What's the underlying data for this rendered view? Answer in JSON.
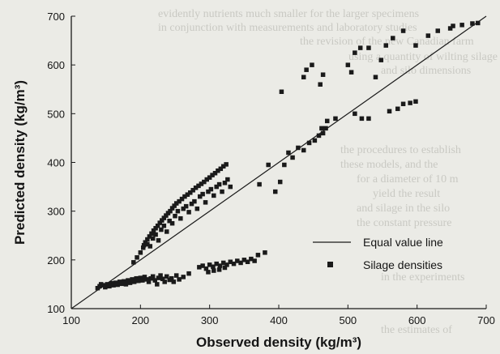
{
  "background_text": [
    "evidently nutrients much smaller for the larger specimens",
    "in conjunction with measurements and laboratory studies",
    "the revision of the new Canadian farm",
    "using a quantity of wilting silage",
    "and silo dimensions",
    "the procedures to establish",
    "these models, and the",
    "for a diameter of 10 m",
    "yield the result",
    "and silage in the silo",
    "the constant pressure",
    "in the experiments",
    "the estimates of"
  ],
  "chart_data": {
    "type": "scatter",
    "title": "",
    "xlabel": "Observed density (kg/m³)",
    "ylabel": "Predicted density (kg/m³)",
    "xlim": [
      100,
      700
    ],
    "ylim": [
      100,
      700
    ],
    "xticks": [
      "100",
      "200",
      "300",
      "400",
      "500",
      "600",
      "700"
    ],
    "yticks": [
      "100",
      "200",
      "300",
      "400",
      "500",
      "600",
      "700"
    ],
    "grid": false,
    "legend_position": "bottom-right",
    "colors": {
      "points": "#1a1a1a",
      "line": "#1a1a1a"
    },
    "reference_line": {
      "name": "Equal value line",
      "from": [
        100,
        100
      ],
      "to": [
        700,
        700
      ]
    },
    "series": [
      {
        "name": "Silage densities",
        "marker": "square",
        "points": [
          [
            138,
            142
          ],
          [
            141,
            146
          ],
          [
            143,
            150
          ],
          [
            146,
            148
          ],
          [
            149,
            144
          ],
          [
            152,
            150
          ],
          [
            155,
            146
          ],
          [
            158,
            152
          ],
          [
            161,
            148
          ],
          [
            164,
            153
          ],
          [
            167,
            149
          ],
          [
            170,
            155
          ],
          [
            173,
            151
          ],
          [
            176,
            156
          ],
          [
            179,
            150
          ],
          [
            182,
            158
          ],
          [
            185,
            153
          ],
          [
            188,
            160
          ],
          [
            191,
            155
          ],
          [
            194,
            162
          ],
          [
            197,
            157
          ],
          [
            200,
            163
          ],
          [
            203,
            158
          ],
          [
            206,
            165
          ],
          [
            209,
            160
          ],
          [
            212,
            155
          ],
          [
            215,
            162
          ],
          [
            218,
            166
          ],
          [
            221,
            158
          ],
          [
            224,
            150
          ],
          [
            226,
            163
          ],
          [
            229,
            168
          ],
          [
            232,
            161
          ],
          [
            235,
            155
          ],
          [
            238,
            166
          ],
          [
            242,
            159
          ],
          [
            245,
            162
          ],
          [
            248,
            155
          ],
          [
            252,
            168
          ],
          [
            256,
            160
          ],
          [
            262,
            165
          ],
          [
            270,
            172
          ],
          [
            190,
            195
          ],
          [
            195,
            205
          ],
          [
            200,
            215
          ],
          [
            204,
            225
          ],
          [
            205,
            230
          ],
          [
            207,
            236
          ],
          [
            210,
            242
          ],
          [
            213,
            248
          ],
          [
            216,
            254
          ],
          [
            219,
            260
          ],
          [
            222,
            265
          ],
          [
            225,
            270
          ],
          [
            228,
            276
          ],
          [
            231,
            281
          ],
          [
            234,
            286
          ],
          [
            237,
            291
          ],
          [
            240,
            296
          ],
          [
            243,
            300
          ],
          [
            246,
            306
          ],
          [
            249,
            311
          ],
          [
            252,
            316
          ],
          [
            256,
            320
          ],
          [
            260,
            325
          ],
          [
            264,
            330
          ],
          [
            268,
            334
          ],
          [
            272,
            338
          ],
          [
            276,
            343
          ],
          [
            280,
            348
          ],
          [
            284,
            352
          ],
          [
            288,
            356
          ],
          [
            292,
            360
          ],
          [
            296,
            365
          ],
          [
            300,
            369
          ],
          [
            304,
            374
          ],
          [
            308,
            378
          ],
          [
            312,
            383
          ],
          [
            316,
            387
          ],
          [
            320,
            392
          ],
          [
            324,
            396
          ],
          [
            210,
            232
          ],
          [
            214,
            228
          ],
          [
            218,
            244
          ],
          [
            222,
            252
          ],
          [
            226,
            240
          ],
          [
            230,
            262
          ],
          [
            234,
            270
          ],
          [
            238,
            258
          ],
          [
            242,
            280
          ],
          [
            246,
            275
          ],
          [
            250,
            290
          ],
          [
            254,
            300
          ],
          [
            258,
            285
          ],
          [
            262,
            305
          ],
          [
            266,
            310
          ],
          [
            270,
            298
          ],
          [
            274,
            315
          ],
          [
            278,
            320
          ],
          [
            282,
            305
          ],
          [
            286,
            330
          ],
          [
            290,
            335
          ],
          [
            294,
            318
          ],
          [
            298,
            340
          ],
          [
            302,
            345
          ],
          [
            306,
            332
          ],
          [
            310,
            350
          ],
          [
            314,
            355
          ],
          [
            318,
            340
          ],
          [
            322,
            358
          ],
          [
            326,
            365
          ],
          [
            330,
            350
          ],
          [
            285,
            185
          ],
          [
            290,
            188
          ],
          [
            295,
            182
          ],
          [
            300,
            190
          ],
          [
            305,
            186
          ],
          [
            310,
            192
          ],
          [
            315,
            188
          ],
          [
            320,
            194
          ],
          [
            325,
            190
          ],
          [
            330,
            196
          ],
          [
            335,
            192
          ],
          [
            340,
            198
          ],
          [
            345,
            194
          ],
          [
            350,
            200
          ],
          [
            355,
            196
          ],
          [
            360,
            202
          ],
          [
            365,
            198
          ],
          [
            370,
            210
          ],
          [
            298,
            175
          ],
          [
            306,
            178
          ],
          [
            314,
            180
          ],
          [
            322,
            184
          ],
          [
            380,
            215
          ],
          [
            395,
            340
          ],
          [
            402,
            360
          ],
          [
            408,
            395
          ],
          [
            414,
            420
          ],
          [
            420,
            410
          ],
          [
            428,
            430
          ],
          [
            436,
            425
          ],
          [
            444,
            440
          ],
          [
            452,
            445
          ],
          [
            458,
            455
          ],
          [
            462,
            470
          ],
          [
            464,
            460
          ],
          [
            468,
            470
          ],
          [
            372,
            355
          ],
          [
            385,
            395
          ],
          [
            404,
            545
          ],
          [
            436,
            575
          ],
          [
            440,
            590
          ],
          [
            448,
            600
          ],
          [
            460,
            560
          ],
          [
            464,
            580
          ],
          [
            500,
            600
          ],
          [
            505,
            585
          ],
          [
            510,
            625
          ],
          [
            518,
            635
          ],
          [
            530,
            635
          ],
          [
            540,
            575
          ],
          [
            548,
            610
          ],
          [
            555,
            640
          ],
          [
            565,
            655
          ],
          [
            580,
            670
          ],
          [
            598,
            640
          ],
          [
            616,
            660
          ],
          [
            630,
            670
          ],
          [
            648,
            675
          ],
          [
            652,
            680
          ],
          [
            665,
            682
          ],
          [
            680,
            685
          ],
          [
            688,
            686
          ],
          [
            510,
            500
          ],
          [
            520,
            490
          ],
          [
            530,
            490
          ],
          [
            560,
            505
          ],
          [
            572,
            510
          ],
          [
            580,
            520
          ],
          [
            590,
            522
          ],
          [
            598,
            525
          ],
          [
            470,
            485
          ],
          [
            482,
            490
          ]
        ]
      }
    ]
  }
}
